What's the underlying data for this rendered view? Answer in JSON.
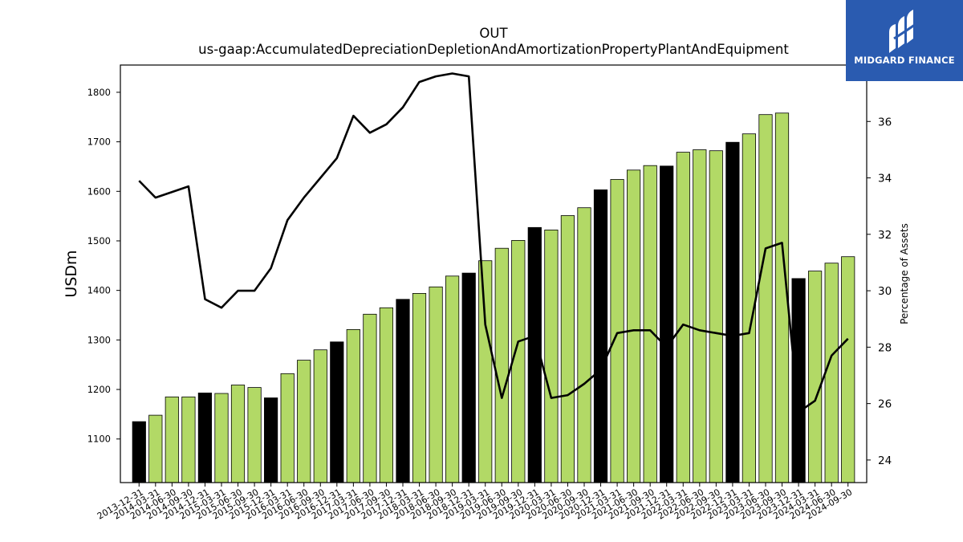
{
  "chart_data": {
    "type": "bar+line",
    "title": "OUT",
    "subtitle": "us-gaap:AccumulatedDepreciationDepletionAndAmortizationPropertyPlantAndEquipment",
    "ylabel": "USDm",
    "y2label": "Percentage of Assets",
    "ylim": [
      1012,
      1855
    ],
    "y2lim": [
      23.2,
      38.0
    ],
    "yticks": [
      1100,
      1200,
      1300,
      1400,
      1500,
      1600,
      1700,
      1800
    ],
    "y2ticks": [
      24,
      26,
      28,
      30,
      32,
      34,
      36
    ],
    "categories": [
      "2013-12-31",
      "2014-03-31",
      "2014-06-30",
      "2014-09-30",
      "2014-12-31",
      "2015-03-31",
      "2015-06-30",
      "2015-09-30",
      "2015-12-31",
      "2016-03-31",
      "2016-06-30",
      "2016-09-30",
      "2016-12-31",
      "2017-03-31",
      "2017-06-30",
      "2017-09-30",
      "2017-12-31",
      "2018-03-31",
      "2018-06-30",
      "2018-09-30",
      "2018-12-31",
      "2019-03-31",
      "2019-06-30",
      "2019-09-30",
      "2019-12-31",
      "2020-03-31",
      "2020-06-30",
      "2020-09-30",
      "2020-12-31",
      "2021-03-31",
      "2021-06-30",
      "2021-09-30",
      "2021-12-31",
      "2022-03-31",
      "2022-06-30",
      "2022-09-30",
      "2022-12-31",
      "2023-03-31",
      "2023-06-30",
      "2023-09-30",
      "2023-12-31",
      "2024-03-31",
      "2024-06-30",
      "2024-09-30"
    ],
    "series": [
      {
        "type": "bar",
        "values": [
          1135,
          1148,
          1185,
          1185,
          1193,
          1192,
          1209,
          1204,
          1183,
          1232,
          1259,
          1280,
          1296,
          1321,
          1352,
          1365,
          1382,
          1394,
          1407,
          1429,
          1435,
          1460,
          1485,
          1501,
          1527,
          1522,
          1551,
          1567,
          1603,
          1624,
          1643,
          1652,
          1651,
          1679,
          1684,
          1682,
          1699,
          1716,
          1755,
          1758,
          1424,
          1439,
          1455,
          1468
        ]
      },
      {
        "type": "line",
        "axis": "right",
        "values": [
          33.9,
          33.3,
          33.5,
          33.7,
          29.7,
          29.4,
          30.0,
          30.0,
          30.8,
          32.5,
          33.3,
          34.0,
          34.7,
          36.2,
          35.6,
          35.9,
          36.5,
          37.4,
          37.6,
          37.7,
          37.6,
          28.8,
          26.2,
          28.2,
          28.4,
          26.2,
          26.3,
          26.7,
          27.2,
          28.5,
          28.6,
          28.6,
          28.0,
          28.8,
          28.6,
          28.5,
          28.4,
          28.5,
          31.5,
          31.7,
          25.7,
          26.1,
          27.7,
          28.3
        ]
      }
    ],
    "colors": {
      "bar_regular": "#b2d966",
      "bar_year_end": "#000000",
      "line": "#000000"
    }
  },
  "logo": {
    "text": "MIDGARD FINANCE",
    "background": "#2a5bb0"
  }
}
